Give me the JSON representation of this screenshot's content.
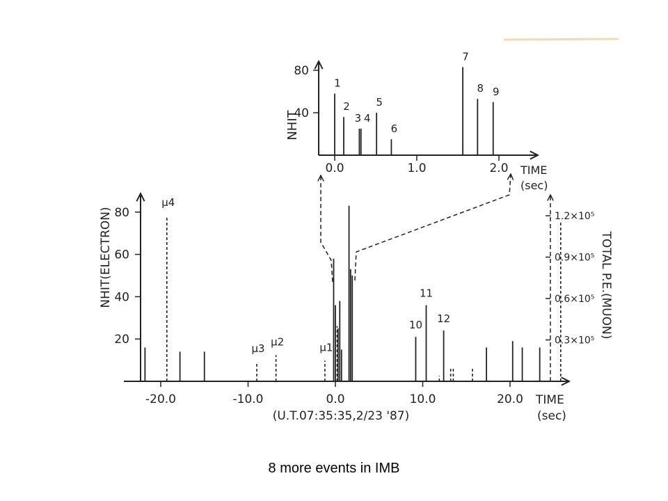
{
  "caption": "8 more events in IMB",
  "chart_data": [
    {
      "id": "inset",
      "type": "bar",
      "xlabel": "TIME",
      "xunit": "(sec)",
      "ylabel": "NHIT",
      "xlim": [
        -0.2,
        2.5
      ],
      "ylim": [
        0,
        90
      ],
      "xticks": [
        0.0,
        1.0,
        2.0
      ],
      "xtick_labels": [
        "0.0",
        "1.0",
        "2.0"
      ],
      "yticks": [
        40,
        80
      ],
      "ytick_labels": [
        "40",
        "80"
      ],
      "events": [
        {
          "label": "1",
          "t": 0.0,
          "nhit": 58
        },
        {
          "label": "2",
          "t": 0.11,
          "nhit": 36
        },
        {
          "label": "3",
          "t": 0.3,
          "nhit": 25
        },
        {
          "label": "4",
          "t": 0.32,
          "nhit": 25
        },
        {
          "label": "5",
          "t": 0.51,
          "nhit": 40
        },
        {
          "label": "6",
          "t": 0.69,
          "nhit": 15
        },
        {
          "label": "7",
          "t": 1.56,
          "nhit": 83
        },
        {
          "label": "8",
          "t": 1.74,
          "nhit": 53
        },
        {
          "label": "9",
          "t": 1.93,
          "nhit": 50
        }
      ]
    },
    {
      "id": "main",
      "type": "bar",
      "xlabel": "TIME",
      "xunit": "(sec)",
      "xsubtitle": "(U.T.07:35:35,2/23 '87)",
      "ylabel": "NHIT(ELECTRON)",
      "y2label": "TOTAL P.E.(MUON)",
      "xlim": [
        -25,
        27
      ],
      "ylim": [
        0,
        90
      ],
      "xticks": [
        -20,
        -10,
        0,
        10,
        20
      ],
      "xtick_labels": [
        "-20.0",
        "-10.0",
        "0.0",
        "10.0",
        "20.0"
      ],
      "yticks": [
        20,
        40,
        60,
        80
      ],
      "ytick_labels": [
        "20",
        "40",
        "60",
        "80"
      ],
      "y2ticks": [
        0.3,
        0.6,
        0.9,
        1.2
      ],
      "y2tick_labels": [
        "0.3×10⁵",
        "0.6×10⁵",
        "0.9×10⁵",
        "1.2×10⁵"
      ],
      "solid_events": [
        {
          "t": -21.8,
          "nhit": 16
        },
        {
          "t": -17.8,
          "nhit": 14
        },
        {
          "t": -15.0,
          "nhit": 14
        },
        {
          "t": -0.2,
          "nhit": 58
        },
        {
          "t": 0.0,
          "nhit": 36
        },
        {
          "t": 0.3,
          "nhit": 25
        },
        {
          "t": 0.5,
          "nhit": 38
        },
        {
          "t": 0.7,
          "nhit": 15
        },
        {
          "t": 1.56,
          "nhit": 83
        },
        {
          "t": 1.74,
          "nhit": 53
        },
        {
          "t": 1.93,
          "nhit": 50
        },
        {
          "t": 9.2,
          "nhit": 21,
          "label": "10"
        },
        {
          "t": 10.4,
          "nhit": 36,
          "label": "11"
        },
        {
          "t": 12.4,
          "nhit": 24,
          "label": "12"
        },
        {
          "t": 17.3,
          "nhit": 16
        },
        {
          "t": 20.3,
          "nhit": 19
        },
        {
          "t": 21.4,
          "nhit": 16
        },
        {
          "t": 23.4,
          "nhit": 16
        }
      ],
      "muon_events": [
        {
          "t": -19.3,
          "pe": 1.2,
          "label": "μ4"
        },
        {
          "t": -9.0,
          "pe": 0.14,
          "label": "μ3"
        },
        {
          "t": -6.8,
          "pe": 0.19,
          "label": "μ2"
        },
        {
          "t": -1.2,
          "pe": 0.15,
          "label": "μ1"
        },
        {
          "t": 0.2,
          "pe": 0.4
        },
        {
          "t": 11.9,
          "pe": 0.04
        },
        {
          "t": 13.2,
          "pe": 0.1
        },
        {
          "t": 13.5,
          "pe": 0.1
        },
        {
          "t": 15.7,
          "pe": 0.1
        },
        {
          "t": 25.8,
          "pe": 1.15
        }
      ]
    }
  ]
}
